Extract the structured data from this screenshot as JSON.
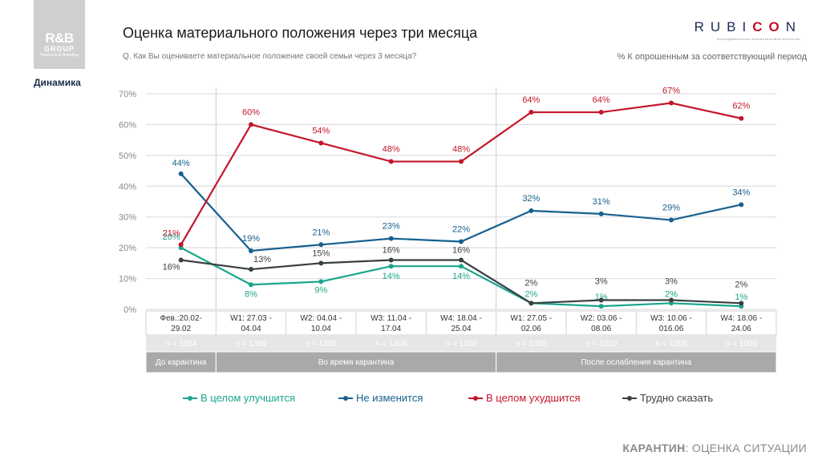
{
  "logo": {
    "line1": "R&B",
    "line2": "GROUP",
    "line3": "Research & Branding"
  },
  "section_label": "Динамика",
  "title": "Оценка материального положения через три месяца",
  "question": "Q. Как Вы оцениваете материальное положение своей семьи через 3 месяца?",
  "brand": {
    "part1": "RUBI",
    "part2": "CO",
    "part3": "N",
    "subtitle": "исследовательско-консалтинговое агентство"
  },
  "note": "% К опрошенным за соответствующий период",
  "footer": {
    "bold": "КАРАНТИН",
    "rest": ": ОЦЕНКА СИТУАЦИИ"
  },
  "colors": {
    "improve": "#1aa58c",
    "same": "#17608f",
    "worse": "#c4162a",
    "hard": "#3a4142"
  },
  "chart_data": {
    "type": "line",
    "categories": [
      "Фев.:20.02-29.02",
      "W1: 27.03 - 04.04",
      "W2: 04.04 - 10.04",
      "W3: 11.04 - 17.04",
      "W4: 18.04 - 25.04",
      "W1: 27.05 - 02.06",
      "W2: 03.06 - 08.06",
      "W3: 10.06 - 016.06",
      "W4: 18.06 - 24.06"
    ],
    "category_lines": [
      [
        "Фев.:20.02-",
        "29.02"
      ],
      [
        "W1: 27.03 -",
        "04.04"
      ],
      [
        "W2: 04.04 -",
        "10.04"
      ],
      [
        "W3: 11.04 -",
        "17.04"
      ],
      [
        "W4: 18.04 -",
        "25.04"
      ],
      [
        "W1: 27.05 -",
        "02.06"
      ],
      [
        "W2: 03.06 -",
        "08.06"
      ],
      [
        "W3: 10.06 -",
        "016.06"
      ],
      [
        "W4: 18.06 -",
        "24.06"
      ]
    ],
    "n_values": [
      "n = 1804",
      "n = 1399",
      "n = 1409",
      "n = 1409",
      "n = 1408",
      "n = 1005",
      "n = 1010",
      "n = 1009",
      "n = 1009"
    ],
    "periods": [
      {
        "label": "До карантина",
        "span": [
          0,
          0
        ]
      },
      {
        "label": "Во время карантина",
        "span": [
          1,
          4
        ]
      },
      {
        "label": "После ослабления карантина",
        "span": [
          5,
          8
        ]
      }
    ],
    "series": [
      {
        "key": "improve",
        "name": "В целом улучшится",
        "values": [
          20,
          8,
          9,
          14,
          14,
          2,
          1,
          2,
          1
        ],
        "labels": [
          "20%",
          "8%",
          "9%",
          "14%",
          "14%",
          "2%",
          "1%",
          "2%",
          "1%"
        ]
      },
      {
        "key": "same",
        "name": "Не изменится",
        "values": [
          44,
          19,
          21,
          23,
          22,
          32,
          31,
          29,
          34
        ],
        "labels": [
          "44%",
          "19%",
          "21%",
          "23%",
          "22%",
          "32%",
          "31%",
          "29%",
          "34%"
        ]
      },
      {
        "key": "worse",
        "name": "В целом ухудшится",
        "values": [
          21,
          60,
          54,
          48,
          48,
          64,
          64,
          67,
          62
        ],
        "labels": [
          "21%",
          "60%",
          "54%",
          "48%",
          "48%",
          "64%",
          "64%",
          "67%",
          "62%"
        ]
      },
      {
        "key": "hard",
        "name": "Трудно сказать",
        "values": [
          16,
          13,
          15,
          16,
          16,
          2,
          3,
          3,
          2
        ],
        "labels": [
          "16%",
          "13%",
          "15%",
          "16%",
          "16%",
          "2%",
          "3%",
          "3%",
          "2%"
        ]
      }
    ],
    "y_ticks": [
      "0%",
      "10%",
      "20%",
      "30%",
      "40%",
      "50%",
      "60%",
      "70%"
    ],
    "ylim": [
      0,
      70
    ],
    "grid": true,
    "legend_position": "bottom"
  }
}
